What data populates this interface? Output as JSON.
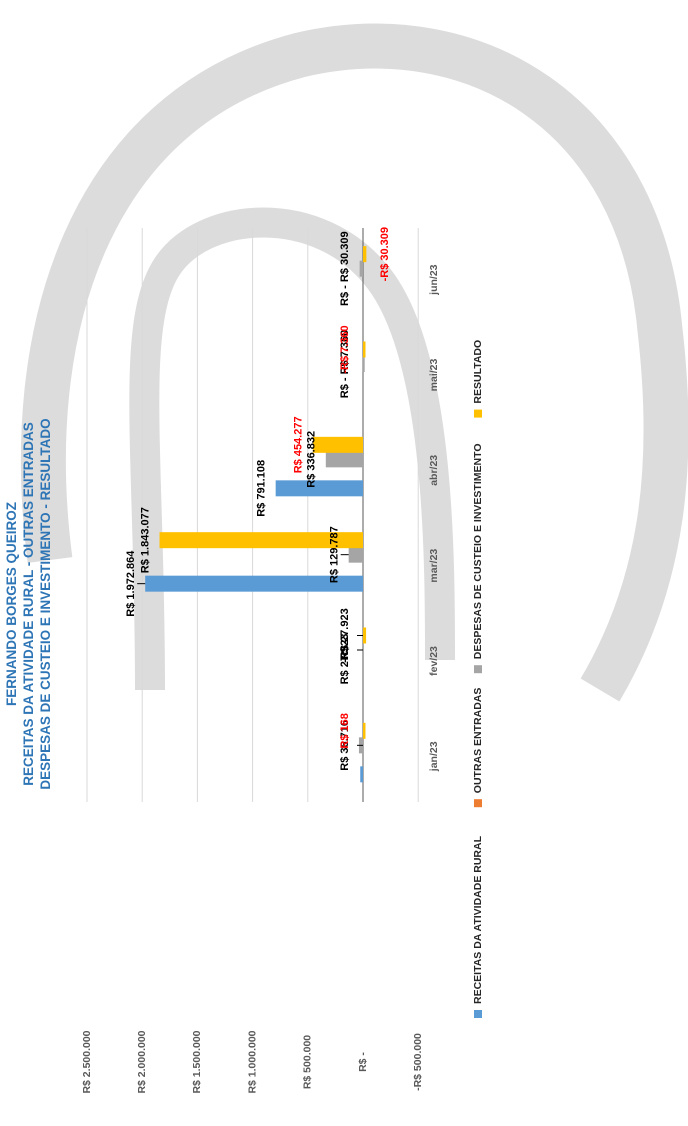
{
  "chart_data": {
    "type": "bar",
    "title_lines": [
      "FERNANDO BORGES QUEIROZ",
      "RECEITAS DA ATIVIDADE RURAL - OUTRAS ENTRADAS",
      "DESPESAS DE CUSTEIO E INVESTIMENTO - RESULTADO"
    ],
    "categories": [
      "jan/23",
      "fev/23",
      "mar/23",
      "abr/23",
      "mai/23",
      "jun/23"
    ],
    "series": [
      {
        "name": "RECEITAS DA ATIVIDADE RURAL",
        "color": "#5B9BD5",
        "values": [
          25000,
          0,
          1972864,
          791108,
          0,
          0
        ],
        "labels": [
          "",
          "",
          "R$ 1.972.864",
          "R$ 791.108",
          "",
          ""
        ]
      },
      {
        "name": "OUTRAS ENTRADAS",
        "color": "#ED7D31",
        "values": [
          0,
          0,
          0,
          0,
          0,
          0
        ],
        "labels": [
          "",
          "",
          "",
          "",
          "",
          ""
        ]
      },
      {
        "name": "DESPESAS DE CUSTEIO E INVESTIMENTO",
        "color": "#A5A5A5",
        "values": [
          36716,
          0,
          129787,
          336832,
          7360,
          30309
        ],
        "labels": [
          "R$ 36.716",
          "R$ -",
          "R$ 129.787",
          "R$ 336.832",
          "R$ - R$ 7.360",
          "R$ - R$ 30.309"
        ]
      },
      {
        "name": "RESULTADO",
        "color": "#FFC000",
        "values": [
          168,
          -27923,
          1843077,
          454277,
          -7360,
          -30309
        ],
        "labels": [
          "R$ 168",
          "-R$ 27.923",
          "R$ 1.843.077",
          "R$ 454.277",
          "-R$ 7.360",
          "-R$ 30.309"
        ],
        "label_colors": [
          "#FF0000",
          "#000000",
          "#000000",
          "#FF0000",
          "#FF0000",
          "#FF0000"
        ]
      }
    ],
    "extra_labels": [
      {
        "text": "R$ 27.923",
        "category": "fev/23"
      }
    ],
    "y_ticks": [
      {
        "value": 2500000,
        "label": "R$ 2.500.000"
      },
      {
        "value": 2000000,
        "label": "R$ 2.000.000"
      },
      {
        "value": 1500000,
        "label": "R$ 1.500.000"
      },
      {
        "value": 1000000,
        "label": "R$ 1.000.000"
      },
      {
        "value": 500000,
        "label": "R$ 500.000"
      },
      {
        "value": 0,
        "label": "R$ -"
      },
      {
        "value": -500000,
        "label": "-R$ 500.000"
      }
    ],
    "ylim": [
      -500000,
      2500000
    ],
    "orientation": "rotated 90deg counter-clockwise",
    "grid": true,
    "legend": "bottom",
    "colors": {
      "axis_text": "#595959",
      "title": "#2E75B6",
      "gridline": "#D9D9D9",
      "watermark": "#DCDCDC"
    }
  }
}
